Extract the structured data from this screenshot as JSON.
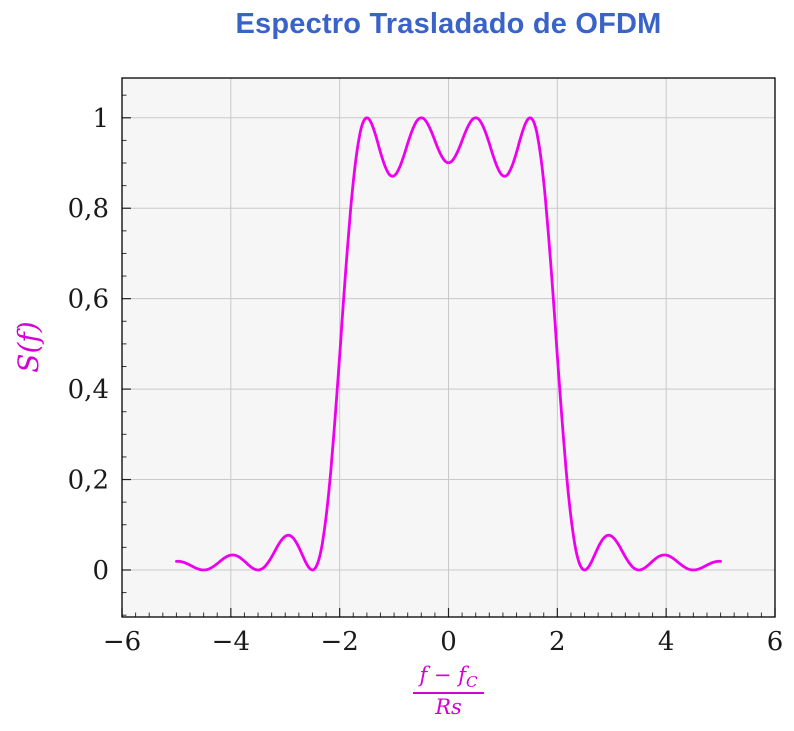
{
  "chart_data": {
    "type": "line",
    "title": "Espectro Trasladado de OFDM",
    "ylabel": "S(f)",
    "xlabel": "(f − f_C) / Rs",
    "xlabel_parts": {
      "num_main": "f − f",
      "num_sub": "C",
      "den": "Rs"
    },
    "xlim": [
      -6,
      6
    ],
    "ylim": [
      -0.104,
      1.088
    ],
    "x_ticks": [
      -6,
      -4,
      -2,
      0,
      2,
      4,
      6
    ],
    "x_tick_labels": [
      "−6",
      "−4",
      "−2",
      "0",
      "2",
      "4",
      "6"
    ],
    "y_ticks": [
      0,
      0.2,
      0.4,
      0.6,
      0.8,
      1
    ],
    "y_tick_labels": [
      "0",
      "0,2",
      "0,4",
      "0,6",
      "0,8",
      "1"
    ],
    "x_minor_step": 0.25,
    "y_minor_step": 0.05,
    "grid": true,
    "legend": false,
    "series": [
      {
        "name": "S(f)",
        "color": "#EE00EE",
        "model": "S(f) = sum over subcarriers k of sinc²(f − fk)",
        "subcarriers": [
          -1.5,
          -0.5,
          0.5,
          1.5
        ],
        "x_range": [
          -5,
          5
        ],
        "sample_step": 0.02,
        "samples_x": [
          -5,
          -4.5,
          -4,
          -3.5,
          -3,
          -2.5,
          -2,
          -1.5,
          -1,
          -0.5,
          0,
          0.5,
          1,
          1.5,
          2,
          2.5,
          3,
          3.5,
          4,
          4.5,
          5
        ],
        "samples_y": [
          0.019,
          0,
          0.033,
          0,
          0.075,
          0,
          0.475,
          1,
          0.872,
          1,
          0.901,
          1,
          0.872,
          1,
          0.475,
          0,
          0.075,
          0,
          0.033,
          0,
          0.019
        ]
      }
    ],
    "colors": {
      "title": "#3A63C8",
      "curve": "#EE00EE",
      "axis_labels": "#D400D4",
      "grid": "#c9c9c9",
      "plot_bg": "#f6f6f6",
      "frame": "#000000",
      "tick_text": "#1a1a1a"
    }
  }
}
